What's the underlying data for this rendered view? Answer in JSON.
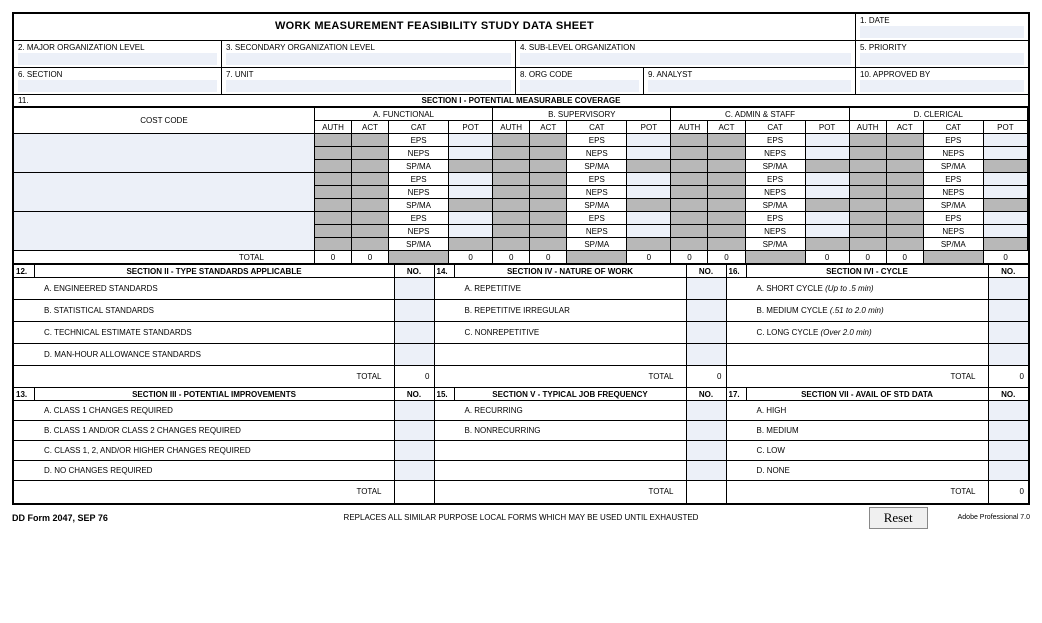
{
  "title": "WORK MEASUREMENT FEASIBILITY STUDY DATA SHEET",
  "header": {
    "date": "1.  DATE",
    "major_org": "2.  MAJOR ORGANIZATION LEVEL",
    "secondary_org": "3.  SECONDARY ORGANIZATION LEVEL",
    "sub_level": "4.  SUB-LEVEL ORGANIZATION",
    "priority": "5.  PRIORITY",
    "section": "6.  SECTION",
    "unit": "7.  UNIT",
    "org_code": "8.  ORG CODE",
    "analyst": "9.  ANALYST",
    "approved": "10.  APPROVED BY"
  },
  "s1": {
    "num": "11.",
    "title": "SECTION I - POTENTIAL MEASURABLE COVERAGE",
    "groups": [
      "A.   FUNCTIONAL",
      "B.   SUPERVISORY",
      "C.   ADMIN & STAFF",
      "D.   CLERICAL"
    ],
    "cost_code": "COST CODE",
    "cols": [
      "AUTH",
      "ACT",
      "CAT",
      "POT"
    ],
    "cats": [
      "EPS",
      "NEPS",
      "SP/MA",
      "EPS",
      "NEPS",
      "SP/MA",
      "EPS",
      "NEPS",
      "SP/MA"
    ],
    "total": "TOTAL",
    "zero": "0"
  },
  "s2": {
    "num": "12.",
    "title": "SECTION II - TYPE STANDARDS APPLICABLE",
    "no": "NO.",
    "items": [
      "A.  ENGINEERED STANDARDS",
      "B.  STATISTICAL STANDARDS",
      "C.  TECHNICAL ESTIMATE STANDARDS",
      "D.  MAN-HOUR ALLOWANCE STANDARDS"
    ],
    "total": "TOTAL",
    "total_val": "0"
  },
  "s3": {
    "num": "13.",
    "title": "SECTION III - POTENTIAL IMPROVEMENTS",
    "no": "NO.",
    "items": [
      "A.  CLASS 1 CHANGES REQUIRED",
      "B.  CLASS 1 AND/OR CLASS 2 CHANGES REQUIRED",
      "C.  CLASS 1, 2, AND/OR HIGHER CHANGES REQUIRED",
      "D.  NO CHANGES REQUIRED"
    ],
    "total": "TOTAL"
  },
  "s4": {
    "num": "14.",
    "title": "SECTION IV - NATURE OF WORK",
    "no": "NO.",
    "items": [
      "A.  REPETITIVE",
      "B.  REPETITIVE IRREGULAR",
      "C.  NONREPETITIVE",
      ""
    ],
    "total": "TOTAL",
    "total_val": "0"
  },
  "s5": {
    "num": "15.",
    "title": "SECTION V - TYPICAL JOB FREQUENCY",
    "no": "NO.",
    "items": [
      "A.  RECURRING",
      "B.  NONRECURRING",
      "",
      ""
    ],
    "total": "TOTAL"
  },
  "s6": {
    "num": "16.",
    "title": "SECTION IVI - CYCLE",
    "no": "NO.",
    "items_main": [
      "A.  SHORT CYCLE ",
      "B.  MEDIUM CYCLE ",
      "C.  LONG CYCLE ",
      ""
    ],
    "items_em": [
      "(Up to .5 min)",
      "(.51 to 2.0 min)",
      "(Over 2.0 min)",
      ""
    ],
    "total": "TOTAL",
    "total_val": "0"
  },
  "s7": {
    "num": "17.",
    "title": "SECTION VII - AVAIL OF STD DATA",
    "no": "NO.",
    "items": [
      "A.  HIGH",
      "B.  MEDIUM",
      "C.  LOW",
      "D.  NONE"
    ],
    "total": "TOTAL",
    "total_val": "0"
  },
  "footer": {
    "form_id": "DD Form 2047, SEP 76",
    "note": "REPLACES ALL SIMILAR PURPOSE LOCAL FORMS WHICH MAY BE USED UNTIL EXHAUSTED",
    "reset": "Reset",
    "adobe": "Adobe Professional 7.0"
  }
}
